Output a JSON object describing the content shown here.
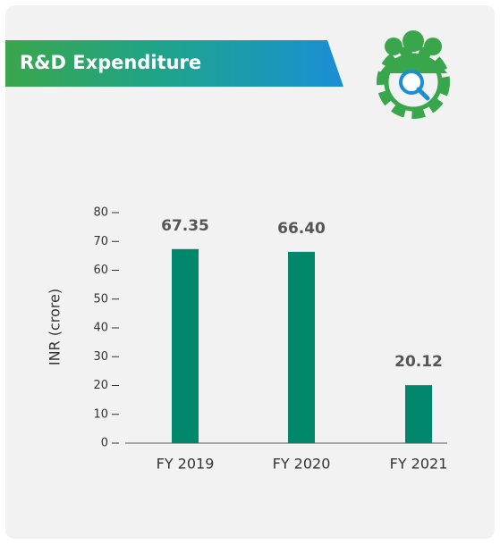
{
  "chart_data": {
    "type": "bar",
    "title": "R&D Expenditure",
    "y_label": "INR (crore)",
    "categories": [
      "FY 2019",
      "FY 2020",
      "FY 2021"
    ],
    "values": [
      67.35,
      66.4,
      20.12
    ],
    "value_labels": [
      "67.35",
      "66.40",
      "20.12"
    ],
    "color": "#00876c",
    "ylim": [
      0,
      80
    ],
    "yticks": [
      0,
      10,
      20,
      30,
      40,
      50,
      60,
      70,
      80
    ]
  }
}
